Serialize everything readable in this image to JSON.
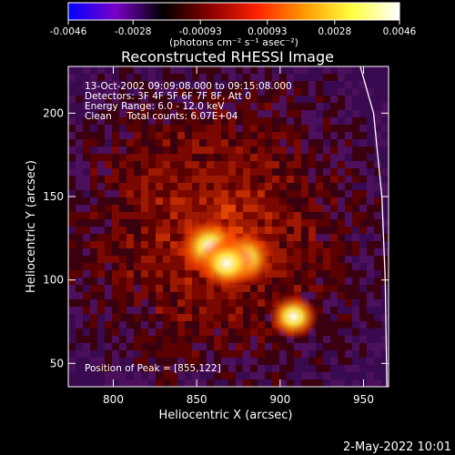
{
  "chart_data": {
    "type": "heatmap",
    "title": "Reconstructed RHESSI Image",
    "xlabel": "Heliocentric X (arcsec)",
    "ylabel": "Heliocentric Y (arcsec)",
    "xlim": [
      773,
      965
    ],
    "ylim": [
      36,
      228
    ],
    "x_ticks": [
      800,
      850,
      900,
      950
    ],
    "y_ticks": [
      50,
      100,
      150,
      200
    ],
    "colorbar": {
      "range": [
        -0.0046,
        0.0046
      ],
      "tick_values": [
        -0.0046,
        -0.0028,
        -0.00093,
        0.00093,
        0.0028,
        0.0046
      ],
      "tick_labels": [
        "-0.0046",
        "-0.0028",
        "-0.00093",
        "0.00093",
        "0.0028",
        "0.0046"
      ],
      "colors": [
        "#0000ff",
        "#7a00c8",
        "#000000",
        "#8a0000",
        "#ff2200",
        "#ff9a00",
        "#ffff40",
        "#ffffff"
      ]
    },
    "colorbar_unit": "(photons cm⁻² s⁻¹ asec⁻²)",
    "info_lines": [
      "13-Oct-2002 09:09:08.000 to 09:15:08.000",
      "Detectors: 3F 4F 5F 6F 7F 8F, Att 0",
      "Energy Range: 6.0 - 12.0 keV",
      "Clean     Total counts: 6.07E+04"
    ],
    "peak_text": "Position of Peak = [855,122]",
    "peak_position": [
      855,
      122
    ],
    "sources": [
      {
        "x": 858,
        "y": 120,
        "intensity": 0.0046
      },
      {
        "x": 878,
        "y": 113,
        "intensity": 0.0044
      },
      {
        "x": 868,
        "y": 110,
        "intensity": 0.004
      },
      {
        "x": 908,
        "y": 78,
        "intensity": 0.003
      }
    ],
    "limb_arc": [
      [
        948,
        228
      ],
      [
        956,
        200
      ],
      [
        961,
        150
      ],
      [
        963,
        100
      ],
      [
        964,
        36
      ]
    ]
  },
  "date_stamp": "2-May-2022 10:01"
}
